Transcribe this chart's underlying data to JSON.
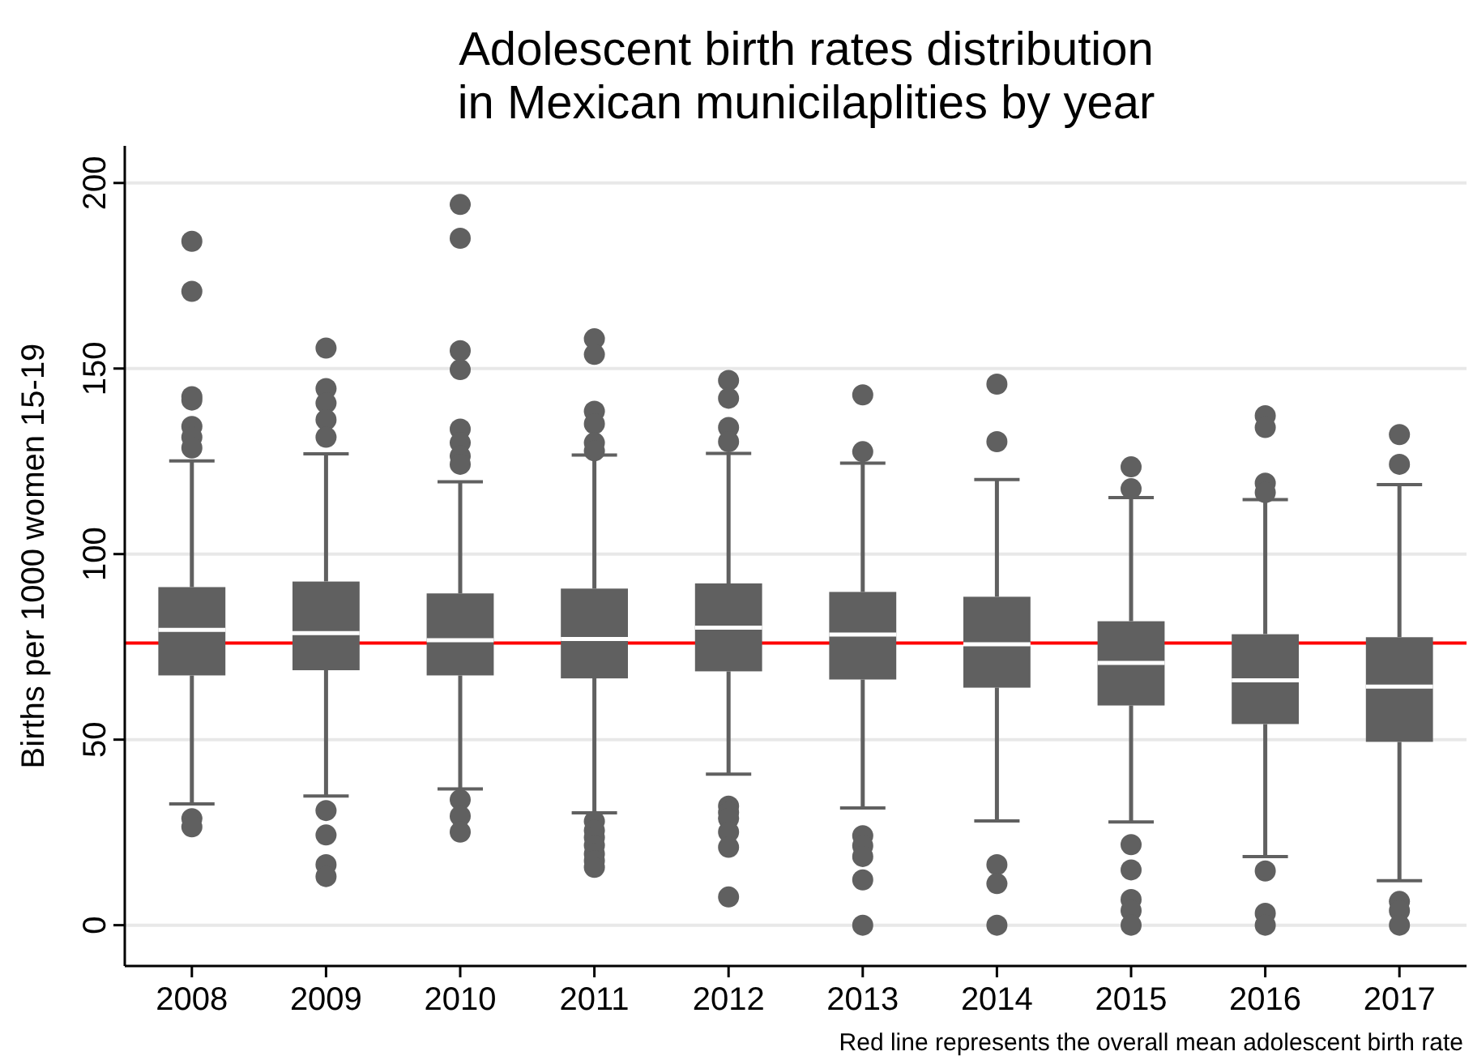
{
  "chart_data": {
    "type": "box",
    "title": "Adolescent birth rates distribution\nin Mexican municilaplities by year",
    "ylabel": "Births per 1000 women 15-19",
    "categories": [
      "2008",
      "2009",
      "2010",
      "2011",
      "2012",
      "2013",
      "2014",
      "2015",
      "2016",
      "2017"
    ],
    "color": "#606060",
    "boxes": [
      {
        "low": 32.7,
        "q1": 67.3,
        "median": 79.6,
        "q3": 91.1,
        "high": 125.1,
        "outliers": [
          184.3,
          170.8,
          142.4,
          141.5,
          134.4,
          131.5,
          128.6,
          28.7,
          26.5
        ]
      },
      {
        "low": 34.8,
        "q1": 68.7,
        "median": 78.7,
        "q3": 92.6,
        "high": 127,
        "outliers": [
          155.5,
          144.6,
          140.7,
          136.2,
          131.5,
          30.9,
          24.3,
          16.3,
          13.1
        ]
      },
      {
        "low": 36.7,
        "q1": 67.3,
        "median": 76.8,
        "q3": 89.4,
        "high": 119.5,
        "outliers": [
          194.2,
          185.1,
          154.8,
          149.7,
          133.7,
          130,
          126.4,
          124.2,
          33.8,
          29.4,
          25.1
        ]
      },
      {
        "low": 30.3,
        "q1": 66.5,
        "median": 77.1,
        "q3": 90.7,
        "high": 126.7,
        "outliers": [
          158,
          153.8,
          138.5,
          135.1,
          130,
          127.8,
          28,
          25.5,
          23.6,
          21.5,
          19.2,
          17.4,
          15.6
        ]
      },
      {
        "low": 40.7,
        "q1": 68.4,
        "median": 80.2,
        "q3": 92.1,
        "high": 127.1,
        "outliers": [
          146.8,
          142,
          134.1,
          130.3,
          32.1,
          30.4,
          28.7,
          25.1,
          21,
          7.6
        ]
      },
      {
        "low": 31.6,
        "q1": 66.2,
        "median": 78.3,
        "q3": 89.8,
        "high": 124.5,
        "outliers": [
          142.9,
          127.6,
          24.1,
          21.4,
          18.5,
          12.2,
          0
        ]
      },
      {
        "low": 28.1,
        "q1": 64,
        "median": 75.7,
        "q3": 88.5,
        "high": 120.1,
        "outliers": [
          145.8,
          130.3,
          16.3,
          11.2,
          0
        ]
      },
      {
        "low": 27.8,
        "q1": 59.2,
        "median": 70.7,
        "q3": 81.9,
        "high": 115.2,
        "outliers": [
          123.5,
          117.6,
          21.7,
          14.9,
          6.9,
          3.9,
          0
        ]
      },
      {
        "low": 18.5,
        "q1": 54.2,
        "median": 66,
        "q3": 78.4,
        "high": 114.7,
        "outliers": [
          137.3,
          134.1,
          119.1,
          116.6,
          14.6,
          3.2,
          0
        ]
      },
      {
        "low": 12,
        "q1": 49.4,
        "median": 64.3,
        "q3": 77.6,
        "high": 118.7,
        "outliers": [
          132.2,
          124.2,
          6.4,
          3.9,
          0
        ]
      }
    ],
    "ylim": [
      -11,
      210
    ],
    "yticks": [
      0,
      50,
      100,
      150,
      200
    ],
    "grid": "y",
    "ref_lines": [
      {
        "axis": "y",
        "value": 76,
        "color": "#ff0000"
      }
    ],
    "annotations": [
      "Red line represents the overall mean adolescent birth rate"
    ]
  }
}
